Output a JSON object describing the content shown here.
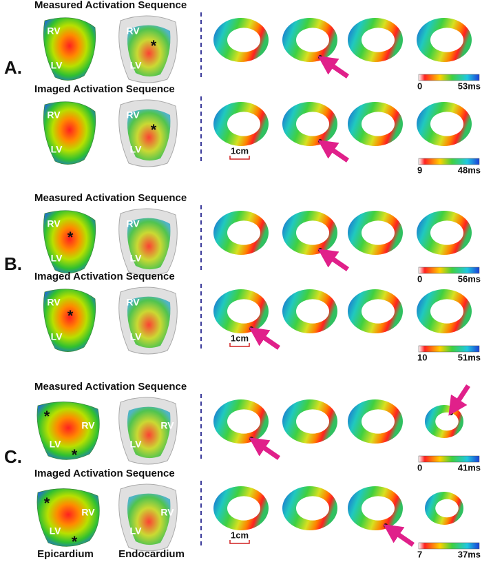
{
  "panels": [
    {
      "label": "A.",
      "rows": [
        {
          "title": "Measured Activation Sequence",
          "hearts": [
            [
              "RV",
              "LV"
            ],
            [
              "RV",
              "*",
              "LV"
            ]
          ],
          "colorbar": [
            "0",
            "53ms"
          ]
        },
        {
          "title": "Imaged Activation Sequence",
          "hearts": [
            [
              "RV",
              "LV"
            ],
            [
              "RV",
              "*",
              "LV"
            ]
          ],
          "scale": "1cm",
          "colorbar": [
            "9",
            "48ms"
          ]
        }
      ]
    },
    {
      "label": "B.",
      "rows": [
        {
          "title": "Measured Activation Sequence",
          "hearts": [
            [
              "RV",
              "*",
              "LV"
            ],
            [
              "RV",
              "LV"
            ]
          ],
          "colorbar": [
            "0",
            "56ms"
          ]
        },
        {
          "title": "Imaged Activation Sequence",
          "hearts": [
            [
              "RV",
              "*",
              "LV"
            ],
            [
              "RV",
              "LV"
            ]
          ],
          "scale": "1cm",
          "colorbar": [
            "10",
            "51ms"
          ]
        }
      ]
    },
    {
      "label": "C.",
      "rows": [
        {
          "title": "Measured Activation Sequence",
          "hearts": [
            [
              "*",
              "RV",
              "LV",
              "*"
            ],
            [
              "RV",
              "LV"
            ]
          ],
          "colorbar": [
            "0",
            "41ms"
          ]
        },
        {
          "title": "Imaged Activation Sequence",
          "hearts": [
            [
              "*",
              "RV",
              "LV",
              "*"
            ],
            [
              "RV",
              "LV"
            ]
          ],
          "scale": "1cm",
          "colorbar": [
            "7",
            "37ms"
          ]
        }
      ]
    }
  ],
  "footer": [
    "Epicardium",
    "Endocardium"
  ]
}
